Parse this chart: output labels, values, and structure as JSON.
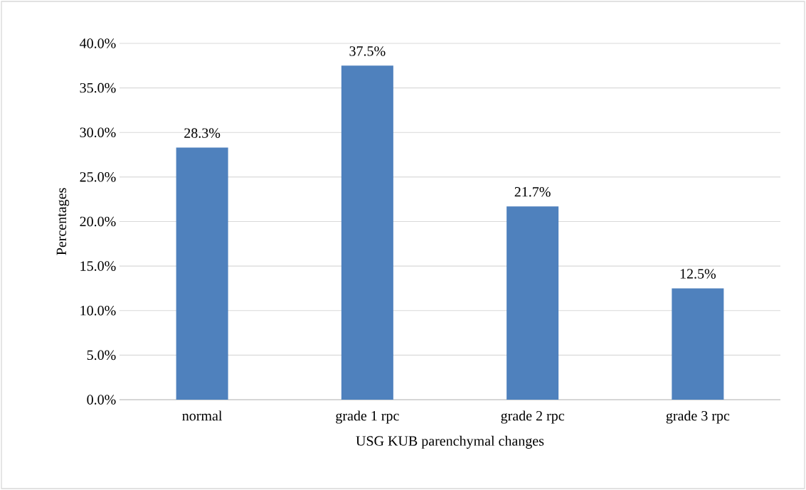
{
  "chart_data": {
    "type": "bar",
    "xlabel": "USG KUB parenchymal changes",
    "ylabel": "Percentages",
    "categories": [
      "normal",
      "grade 1 rpc",
      "grade 2 rpc",
      "grade 3 rpc"
    ],
    "values": [
      28.3,
      37.5,
      21.7,
      12.5
    ],
    "value_labels": [
      "28.3%",
      "37.5%",
      "21.7%",
      "12.5%"
    ],
    "color": "#4f81bd",
    "ylim": [
      0,
      40
    ],
    "yticks": [
      {
        "value": 0,
        "label": "0.0%"
      },
      {
        "value": 5,
        "label": "5.0%"
      },
      {
        "value": 10,
        "label": "10.0%"
      },
      {
        "value": 15,
        "label": "15.0%"
      },
      {
        "value": 20,
        "label": "20.0%"
      },
      {
        "value": 25,
        "label": "25.0%"
      },
      {
        "value": 30,
        "label": "30.0%"
      },
      {
        "value": 35,
        "label": "35.0%"
      },
      {
        "value": 40,
        "label": "40.0%"
      }
    ],
    "grid": "y"
  }
}
